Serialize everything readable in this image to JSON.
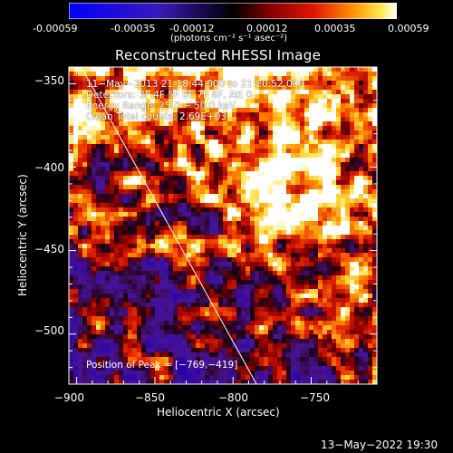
{
  "colorbar": {
    "ticks": [
      "-0.00059",
      "-0.00035",
      "-0.00012",
      "0.00012",
      "0.00035",
      "0.00059"
    ],
    "units": "(photons cm⁻² s⁻¹ asec⁻²)"
  },
  "chart_data": {
    "type": "heatmap",
    "title": "Reconstructed RHESSI Image",
    "xlabel": "Heliocentric X (arcsec)",
    "ylabel": "Heliocentric Y (arcsec)",
    "xlim": [
      -905,
      -708
    ],
    "ylim": [
      -530,
      -340
    ],
    "xticks": [
      -900,
      -850,
      -800,
      -750
    ],
    "xtick_labels": [
      "−900",
      "−850",
      "−800",
      "−750"
    ],
    "yticks": [
      -350,
      -400,
      -450,
      -500
    ],
    "ytick_labels": [
      "−350",
      "−400",
      "−450",
      "−500"
    ],
    "color_range": [
      -0.00059,
      0.00059
    ],
    "limb_line": {
      "from": [
        -897,
        -340
      ],
      "to": [
        -785,
        -530
      ]
    },
    "peak": {
      "x": -769,
      "y": -419
    },
    "annotations": [
      "11−May−2013 21:18:44.000 to 21:20:52.000",
      "Detectors: 3F 4F 5F 6F 7F 8F, Att 0",
      "Energy Range: 25.0 − 50.0 keV",
      "Clean    Total counts: 2.69E+03"
    ],
    "peak_label": "Position of Peak = [−769,−419]"
  },
  "footer_timestamp": "13−May−2022 19:30"
}
